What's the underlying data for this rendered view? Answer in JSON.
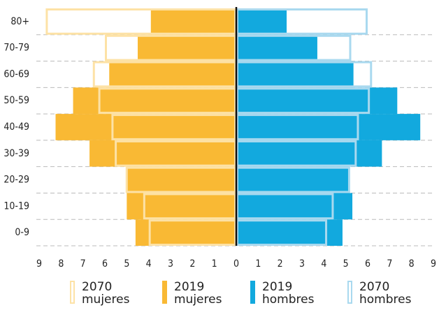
{
  "chart_data": {
    "type": "pyramid",
    "categories": [
      "80+",
      "70-79",
      "60-69",
      "50-59",
      "40-49",
      "30-39",
      "20-29",
      "10-19",
      "0-9"
    ],
    "series": [
      {
        "name": "2070 mujeres",
        "side": "left",
        "style": "outline",
        "color": "#FDE2A6",
        "values": [
          8.7,
          6.0,
          6.55,
          6.3,
          5.7,
          5.55,
          5.05,
          4.25,
          4.0
        ]
      },
      {
        "name": "2019 mujeres",
        "side": "left",
        "style": "fill",
        "color": "#F9B934",
        "values": [
          3.9,
          4.5,
          5.8,
          7.45,
          8.25,
          6.7,
          5.0,
          5.0,
          4.6
        ]
      },
      {
        "name": "2019 hombres",
        "side": "right",
        "style": "fill",
        "color": "#12A9DE",
        "values": [
          2.3,
          3.7,
          5.35,
          7.35,
          8.4,
          6.65,
          5.15,
          5.3,
          4.85
        ]
      },
      {
        "name": "2070 hombres",
        "side": "right",
        "style": "outline",
        "color": "#A9D9EF",
        "values": [
          6.0,
          5.25,
          6.2,
          6.1,
          5.6,
          5.5,
          5.2,
          4.45,
          4.15
        ]
      }
    ],
    "xlim": [
      0,
      9
    ],
    "xticks": [
      0,
      1,
      2,
      3,
      4,
      5,
      6,
      7,
      8,
      9
    ],
    "grid": true
  }
}
